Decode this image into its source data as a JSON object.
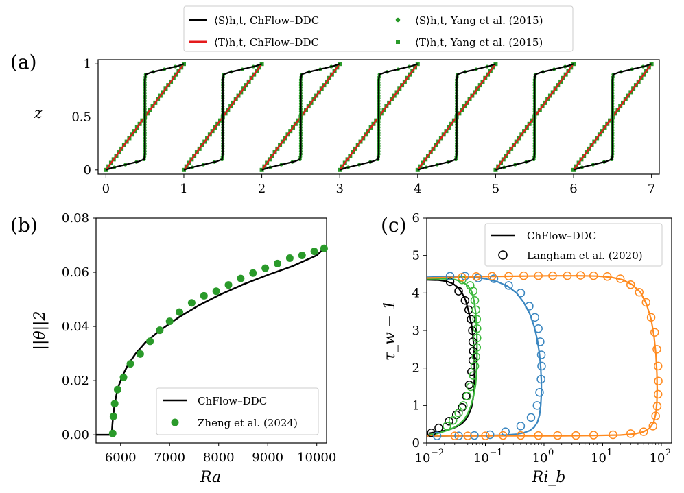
{
  "panel_labels": [
    "(a)",
    "(b)",
    "(c)"
  ],
  "legend_top": {
    "entries": [
      {
        "label": "⟨S⟩h,t, ChFlow–DDC",
        "color": "#000000",
        "marker": "line"
      },
      {
        "label": "⟨T⟩h,t, ChFlow–DDC",
        "color": "#e41a1c",
        "marker": "line"
      },
      {
        "label": "⟨S⟩h,t, Yang et al. (2015)",
        "color": "#2a9a2a",
        "marker": "dot"
      },
      {
        "label": "⟨T⟩h,t, Yang et al. (2015)",
        "color": "#2a9a2a",
        "marker": "square"
      }
    ]
  },
  "colors": {
    "black": "#000000",
    "red": "#e41a1c",
    "green": "#2a9a2a",
    "blue": "#3a86c0",
    "orange": "#ff8a1f"
  },
  "chart_data": [
    {
      "id": "a",
      "type": "line",
      "title": "",
      "xlabel": "",
      "ylabel": "z",
      "xlim": [
        -0.1,
        7.1
      ],
      "ylim": [
        -0.04,
        1.04
      ],
      "xticks": [
        0,
        1,
        2,
        3,
        4,
        5,
        6,
        7
      ],
      "yticks": [
        0,
        0.5,
        1
      ],
      "ytick_labels": [
        "0",
        "0.5",
        "1"
      ],
      "profiles": 7,
      "profile_offsets": [
        0,
        1,
        2,
        3,
        4,
        5,
        6
      ],
      "series": [
        {
          "name": "⟨S⟩h,t, ChFlow–DDC",
          "kind": "salinity",
          "color": "#000000",
          "style": "line",
          "s_profile": {
            "z": [
              0,
              0.02,
              0.05,
              0.08,
              0.1,
              0.15,
              0.3,
              0.5,
              0.7,
              0.85,
              0.9,
              0.92,
              0.95,
              0.98,
              1
            ],
            "s": [
              0,
              0.08,
              0.25,
              0.42,
              0.49,
              0.5,
              0.5,
              0.5,
              0.5,
              0.5,
              0.51,
              0.58,
              0.75,
              0.92,
              1
            ]
          }
        },
        {
          "name": "⟨T⟩h,t, ChFlow–DDC",
          "kind": "temperature",
          "color": "#e41a1c",
          "style": "line",
          "t_profile": {
            "z": [
              0,
              1
            ],
            "t": [
              0,
              1
            ]
          }
        },
        {
          "name": "⟨S⟩h,t, Yang et al. (2015)",
          "kind": "salinity",
          "color": "#2a9a2a",
          "style": "dot"
        },
        {
          "name": "⟨T⟩h,t, Yang et al. (2015)",
          "kind": "temperature",
          "color": "#2a9a2a",
          "style": "square"
        }
      ]
    },
    {
      "id": "b",
      "type": "line",
      "title": "",
      "xlabel": "Ra",
      "ylabel": "||θ||2",
      "xlim": [
        5500,
        10200
      ],
      "ylim": [
        -0.003,
        0.08
      ],
      "xticks": [
        6000,
        7000,
        8000,
        9000,
        10000
      ],
      "yticks": [
        0.0,
        0.02,
        0.04,
        0.06,
        0.08
      ],
      "ytick_labels": [
        "0.00",
        "0.02",
        "0.04",
        "0.06",
        "0.08"
      ],
      "series": [
        {
          "name": "ChFlow–DDC",
          "color": "#000000",
          "style": "line",
          "x": [
            5500,
            5820,
            5825,
            5835,
            5850,
            5880,
            5920,
            5970,
            6050,
            6150,
            6300,
            6500,
            6800,
            7200,
            7600,
            8000,
            8500,
            9000,
            9500,
            10000,
            10150
          ],
          "y": [
            0.0,
            0.0,
            0.0015,
            0.004,
            0.0072,
            0.0115,
            0.0152,
            0.0185,
            0.0222,
            0.0258,
            0.0298,
            0.034,
            0.0385,
            0.0435,
            0.0478,
            0.0515,
            0.0555,
            0.059,
            0.0622,
            0.0662,
            0.0688
          ]
        },
        {
          "name": "Zheng et al. (2024)",
          "color": "#2a9a2a",
          "style": "dot",
          "x": [
            5840,
            5855,
            5880,
            5940,
            6060,
            6200,
            6400,
            6600,
            6800,
            7000,
            7200,
            7450,
            7700,
            7950,
            8200,
            8450,
            8700,
            8950,
            9200,
            9450,
            9700,
            9950,
            10150
          ],
          "y": [
            0.0005,
            0.0068,
            0.0115,
            0.0167,
            0.0212,
            0.0262,
            0.0298,
            0.0345,
            0.0386,
            0.0419,
            0.0453,
            0.0487,
            0.0513,
            0.053,
            0.0553,
            0.0577,
            0.0597,
            0.0615,
            0.0632,
            0.0652,
            0.0662,
            0.0677,
            0.0688
          ]
        }
      ],
      "legend": {
        "placement": "lower-right",
        "entries": [
          "ChFlow–DDC",
          "Zheng et al. (2024)"
        ]
      }
    },
    {
      "id": "c",
      "type": "line",
      "title": "",
      "xlabel": "Ri_b",
      "ylabel": "τ_w − 1",
      "xscale": "log",
      "xlim": [
        0.01,
        150
      ],
      "ylim": [
        0,
        6
      ],
      "xticks": [
        0.01,
        0.1,
        1,
        10,
        100
      ],
      "xtick_labels": [
        [
          "10",
          "−2"
        ],
        [
          "10",
          "−1"
        ],
        [
          "10",
          "0"
        ],
        [
          "10",
          "1"
        ],
        [
          "10",
          "2"
        ]
      ],
      "yticks": [
        0,
        1,
        2,
        3,
        4,
        5,
        6
      ],
      "series": [
        {
          "name": "black",
          "color": "#000000",
          "line": {
            "x": [
              0.01,
              0.016,
              0.022,
              0.028,
              0.034,
              0.04,
              0.046,
              0.052,
              0.058,
              0.062,
              0.064,
              0.065,
              0.065,
              0.064,
              0.062,
              0.058,
              0.052,
              0.046,
              0.04,
              0.034,
              0.028,
              0.022,
              0.016,
              0.012,
              0.011
            ],
            "y": [
              4.35,
              4.34,
              4.31,
              4.25,
              4.15,
              4.0,
              3.8,
              3.5,
              3.15,
              2.8,
              2.45,
              2.1,
              1.75,
              1.45,
              1.2,
              0.95,
              0.76,
              0.62,
              0.52,
              0.45,
              0.39,
              0.34,
              0.3,
              0.27,
              0.26
            ]
          },
          "points": {
            "x": [
              0.025,
              0.035,
              0.045,
              0.052,
              0.057,
              0.06,
              0.061,
              0.062,
              0.061,
              0.058,
              0.053,
              0.047,
              0.04,
              0.032,
              0.024,
              0.016,
              0.012
            ],
            "y": [
              4.3,
              4.05,
              3.8,
              3.55,
              3.3,
              3.0,
              2.7,
              2.45,
              2.2,
              1.9,
              1.55,
              1.25,
              0.95,
              0.75,
              0.58,
              0.4,
              0.27
            ]
          }
        },
        {
          "name": "green",
          "color": "#3cb83c",
          "line": {
            "x": [
              0.01,
              0.02,
              0.03,
              0.04,
              0.05,
              0.058,
              0.064,
              0.068,
              0.071,
              0.072,
              0.072,
              0.071,
              0.068,
              0.063,
              0.057,
              0.05,
              0.043,
              0.036,
              0.03,
              0.024,
              0.019,
              0.015,
              0.011
            ],
            "y": [
              4.38,
              4.38,
              4.36,
              4.3,
              4.2,
              4.05,
              3.8,
              3.5,
              3.1,
              2.7,
              2.3,
              1.9,
              1.55,
              1.25,
              1.0,
              0.78,
              0.62,
              0.5,
              0.42,
              0.35,
              0.3,
              0.25,
              0.22
            ]
          },
          "points": {
            "x": [
              0.04,
              0.055,
              0.062,
              0.066,
              0.069,
              0.071,
              0.072,
              0.072,
              0.071,
              0.069,
              0.066,
              0.062,
              0.056,
              0.049,
              0.042,
              0.035,
              0.028,
              0.022
            ],
            "y": [
              4.35,
              4.2,
              4.05,
              3.8,
              3.55,
              3.3,
              3.05,
              2.8,
              2.55,
              2.3,
              2.05,
              1.8,
              1.5,
              1.25,
              1.0,
              0.8,
              0.6,
              0.45
            ]
          }
        },
        {
          "name": "blue",
          "color": "#3a86c0",
          "line": {
            "x": [
              0.01,
              0.03,
              0.06,
              0.1,
              0.16,
              0.24,
              0.34,
              0.45,
              0.57,
              0.68,
              0.77,
              0.84,
              0.88,
              0.9,
              0.9,
              0.88,
              0.84,
              0.77,
              0.68,
              0.57,
              0.45,
              0.33,
              0.22,
              0.13,
              0.07,
              0.04,
              0.025,
              0.015,
              0.01
            ],
            "y": [
              4.42,
              4.44,
              4.43,
              4.38,
              4.3,
              4.18,
              4.0,
              3.75,
              3.45,
              3.1,
              2.75,
              2.35,
              2.0,
              1.65,
              1.3,
              1.0,
              0.75,
              0.55,
              0.42,
              0.33,
              0.27,
              0.23,
              0.21,
              0.2,
              0.19,
              0.19,
              0.19,
              0.18,
              0.18
            ]
          },
          "points": {
            "x": [
              0.025,
              0.045,
              0.075,
              0.14,
              0.25,
              0.4,
              0.56,
              0.7,
              0.8,
              0.86,
              0.9,
              0.91,
              0.89,
              0.84,
              0.76,
              0.6,
              0.4,
              0.22,
              0.12,
              0.065,
              0.035,
              0.015
            ],
            "y": [
              4.45,
              4.45,
              4.4,
              4.38,
              4.2,
              4.0,
              3.65,
              3.35,
              3.05,
              2.7,
              2.35,
              2.05,
              1.7,
              1.35,
              1.0,
              0.68,
              0.45,
              0.3,
              0.22,
              0.2,
              0.19,
              0.19
            ]
          }
        },
        {
          "name": "orange",
          "color": "#ff8a1f",
          "line": {
            "x": [
              0.01,
              0.1,
              0.5,
              1.5,
              4,
              8,
              14,
              22,
              32,
              44,
              56,
              67,
              75,
              81,
              84,
              85,
              84,
              81,
              74,
              64,
              50,
              35,
              20,
              8,
              2,
              0.5,
              0.1,
              0.01
            ],
            "y": [
              4.4,
              4.44,
              4.45,
              4.46,
              4.46,
              4.45,
              4.42,
              4.35,
              4.22,
              4.02,
              3.7,
              3.3,
              2.85,
              2.35,
              1.85,
              1.45,
              1.1,
              0.8,
              0.55,
              0.4,
              0.3,
              0.24,
              0.21,
              0.2,
              0.19,
              0.19,
              0.19,
              0.19
            ]
          },
          "points": {
            "x": [
              0.04,
              0.07,
              0.13,
              0.25,
              0.45,
              0.8,
              1.4,
              2.5,
              4.2,
              7,
              12,
              20,
              30,
              42,
              55,
              67,
              77,
              84,
              88,
              89,
              88,
              85,
              80,
              72,
              50,
              30,
              15,
              7,
              3.5,
              1.7,
              0.8,
              0.4,
              0.2,
              0.1,
              0.05,
              0.03
            ],
            "y": [
              4.42,
              4.44,
              4.45,
              4.45,
              4.46,
              4.46,
              4.46,
              4.46,
              4.47,
              4.46,
              4.44,
              4.38,
              4.22,
              4.02,
              3.75,
              3.35,
              2.95,
              2.5,
              2.05,
              1.65,
              1.3,
              0.98,
              0.72,
              0.45,
              0.3,
              0.25,
              0.22,
              0.21,
              0.2,
              0.2,
              0.2,
              0.2,
              0.2,
              0.19,
              0.19,
              0.19
            ]
          }
        }
      ],
      "legend": {
        "placement": "upper-right",
        "entries": [
          "ChFlow–DDC",
          "Langham et al. (2020)"
        ]
      }
    }
  ]
}
